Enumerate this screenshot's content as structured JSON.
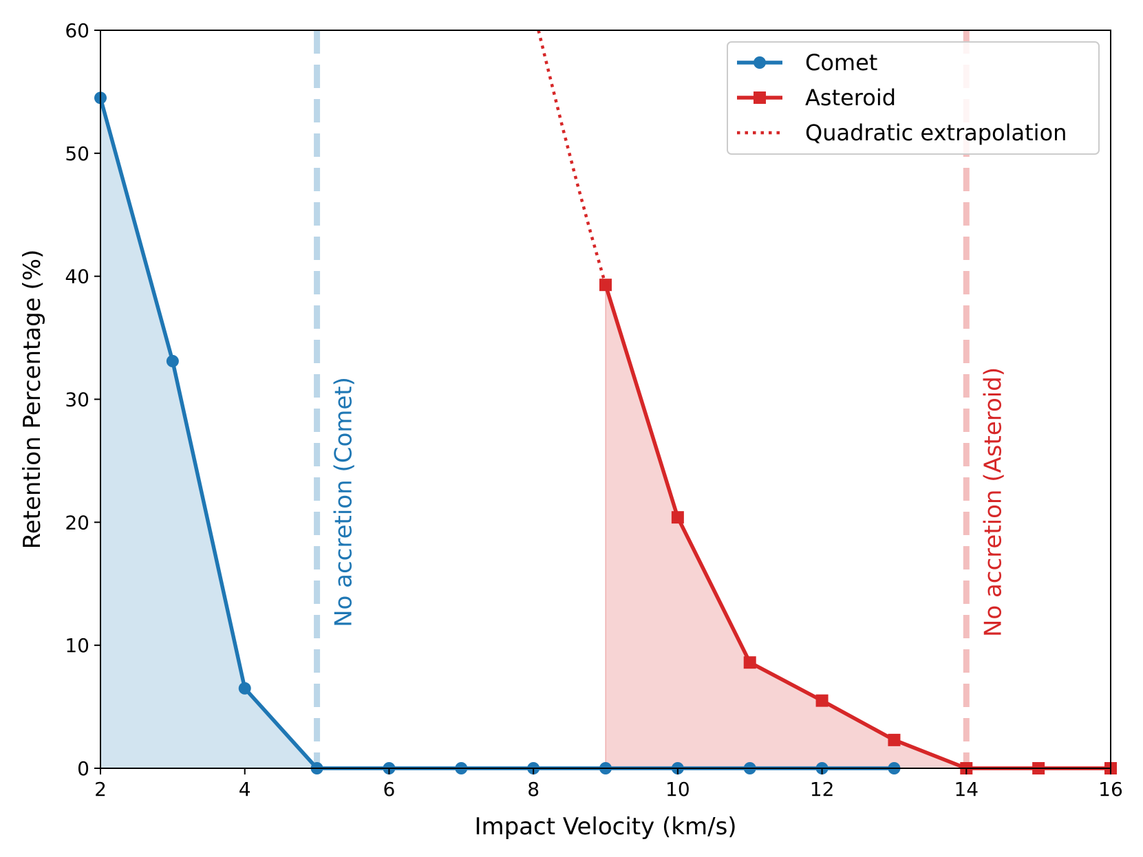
{
  "chart_data": {
    "type": "line",
    "title": "",
    "xlabel": "Impact Velocity (km/s)",
    "ylabel": "Retention Percentage (%)",
    "xlim": [
      2,
      16
    ],
    "ylim": [
      0,
      60
    ],
    "xticks": [
      2,
      4,
      6,
      8,
      10,
      12,
      14,
      16
    ],
    "yticks": [
      0,
      10,
      20,
      30,
      40,
      50,
      60
    ],
    "grid": false,
    "legend_position": "top-right",
    "series": [
      {
        "name": "Comet",
        "color": "#1f77b4",
        "marker": "circle",
        "x": [
          2,
          3,
          4,
          5,
          6,
          7,
          8,
          9,
          10,
          11,
          12,
          13
        ],
        "values": [
          54.5,
          33.1,
          6.5,
          0,
          0,
          0,
          0,
          0,
          0,
          0,
          0,
          0
        ],
        "fill_between_x": [
          2,
          5
        ]
      },
      {
        "name": "Asteroid",
        "color": "#d62728",
        "marker": "square",
        "x": [
          9,
          10,
          11,
          12,
          13,
          14,
          15,
          16
        ],
        "values": [
          39.3,
          20.4,
          8.6,
          5.5,
          2.3,
          0,
          0,
          0
        ],
        "fill_between_x": [
          9,
          14
        ]
      },
      {
        "name": "Quadratic extrapolation",
        "color": "#d62728",
        "style": "dotted",
        "x": [
          8.07,
          8.2,
          8.4,
          8.6,
          8.8,
          9.0
        ],
        "values": [
          60,
          56.9,
          52.2,
          47.7,
          43.4,
          39.3
        ]
      }
    ],
    "vlines": [
      {
        "x": 5,
        "label": "No accretion (Comet)",
        "color": "#1f77b4"
      },
      {
        "x": 14,
        "label": "No accretion (Asteroid)",
        "color": "#d62728"
      }
    ]
  }
}
